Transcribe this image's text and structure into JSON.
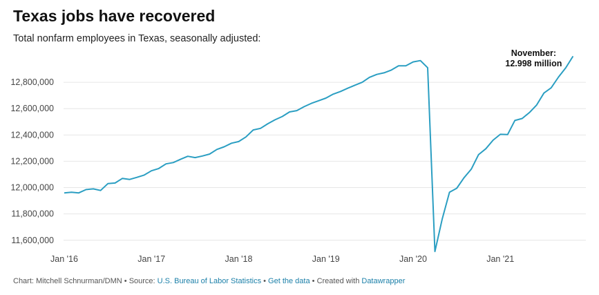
{
  "header": {
    "title": "Texas jobs have recovered",
    "subtitle": "Total nonfarm employees in Texas, seasonally adjusted:"
  },
  "footer": {
    "chart_credit": "Chart: Mitchell Schnurman/DMN",
    "sep1": " • ",
    "source_prefix": "Source: ",
    "source_link": "U.S. Bureau of Labor Statistics",
    "sep2": " • ",
    "data_link": "Get the data",
    "sep3": " • ",
    "created_prefix": "Created with ",
    "tool_link": "Datawrapper"
  },
  "colors": {
    "line": "#2a9ec2",
    "grid": "#e6e6e6",
    "text": "#222222"
  },
  "chart_data": {
    "type": "line",
    "title": "Texas jobs have recovered",
    "subtitle": "Total nonfarm employees in Texas, seasonally adjusted:",
    "xlabel": "",
    "ylabel": "",
    "ylim": [
      11520000,
      13000000
    ],
    "yticks": [
      11600000,
      11800000,
      12000000,
      12200000,
      12400000,
      12600000,
      12800000
    ],
    "ytick_labels": [
      "11,600,000",
      "11,800,000",
      "12,000,000",
      "12,200,000",
      "12,400,000",
      "12,600,000",
      "12,800,000"
    ],
    "xticks": [
      "2016-01",
      "2017-01",
      "2018-01",
      "2019-01",
      "2020-01",
      "2021-01"
    ],
    "xtick_labels": [
      "Jan '16",
      "Jan '17",
      "Jan '18",
      "Jan '19",
      "Jan '20",
      "Jan '21"
    ],
    "grid": true,
    "annotation": {
      "line1": "November:",
      "line2": "12.998 million",
      "x": "2021-11"
    },
    "series": [
      {
        "x": [
          "2016-01",
          "2016-02",
          "2016-03",
          "2016-04",
          "2016-05",
          "2016-06",
          "2016-07",
          "2016-08",
          "2016-09",
          "2016-10",
          "2016-11",
          "2016-12",
          "2017-01",
          "2017-02",
          "2017-03",
          "2017-04",
          "2017-05",
          "2017-06",
          "2017-07",
          "2017-08",
          "2017-09",
          "2017-10",
          "2017-11",
          "2017-12",
          "2018-01",
          "2018-02",
          "2018-03",
          "2018-04",
          "2018-05",
          "2018-06",
          "2018-07",
          "2018-08",
          "2018-09",
          "2018-10",
          "2018-11",
          "2018-12",
          "2019-01",
          "2019-02",
          "2019-03",
          "2019-04",
          "2019-05",
          "2019-06",
          "2019-07",
          "2019-08",
          "2019-09",
          "2019-10",
          "2019-11",
          "2019-12",
          "2020-01",
          "2020-02",
          "2020-03",
          "2020-04",
          "2020-05",
          "2020-06",
          "2020-07",
          "2020-08",
          "2020-09",
          "2020-10",
          "2020-11",
          "2020-12",
          "2021-01",
          "2021-02",
          "2021-03",
          "2021-04",
          "2021-05",
          "2021-06",
          "2021-07",
          "2021-08",
          "2021-09",
          "2021-10",
          "2021-11"
        ],
        "values": [
          11960000,
          11965000,
          11960000,
          11985000,
          11990000,
          11978000,
          12030000,
          12035000,
          12070000,
          12062000,
          12078000,
          12095000,
          12128000,
          12145000,
          12180000,
          12190000,
          12215000,
          12238000,
          12228000,
          12240000,
          12255000,
          12290000,
          12310000,
          12337000,
          12350000,
          12385000,
          12438000,
          12450000,
          12485000,
          12515000,
          12540000,
          12575000,
          12585000,
          12615000,
          12640000,
          12660000,
          12680000,
          12710000,
          12730000,
          12755000,
          12778000,
          12800000,
          12838000,
          12860000,
          12872000,
          12893000,
          12925000,
          12925000,
          12955000,
          12965000,
          12910000,
          11515000,
          11760000,
          11965000,
          11995000,
          12075000,
          12140000,
          12250000,
          12295000,
          12360000,
          12405000,
          12403000,
          12510000,
          12525000,
          12570000,
          12628000,
          12718000,
          12758000,
          12840000,
          12910000,
          12998000
        ]
      }
    ]
  }
}
